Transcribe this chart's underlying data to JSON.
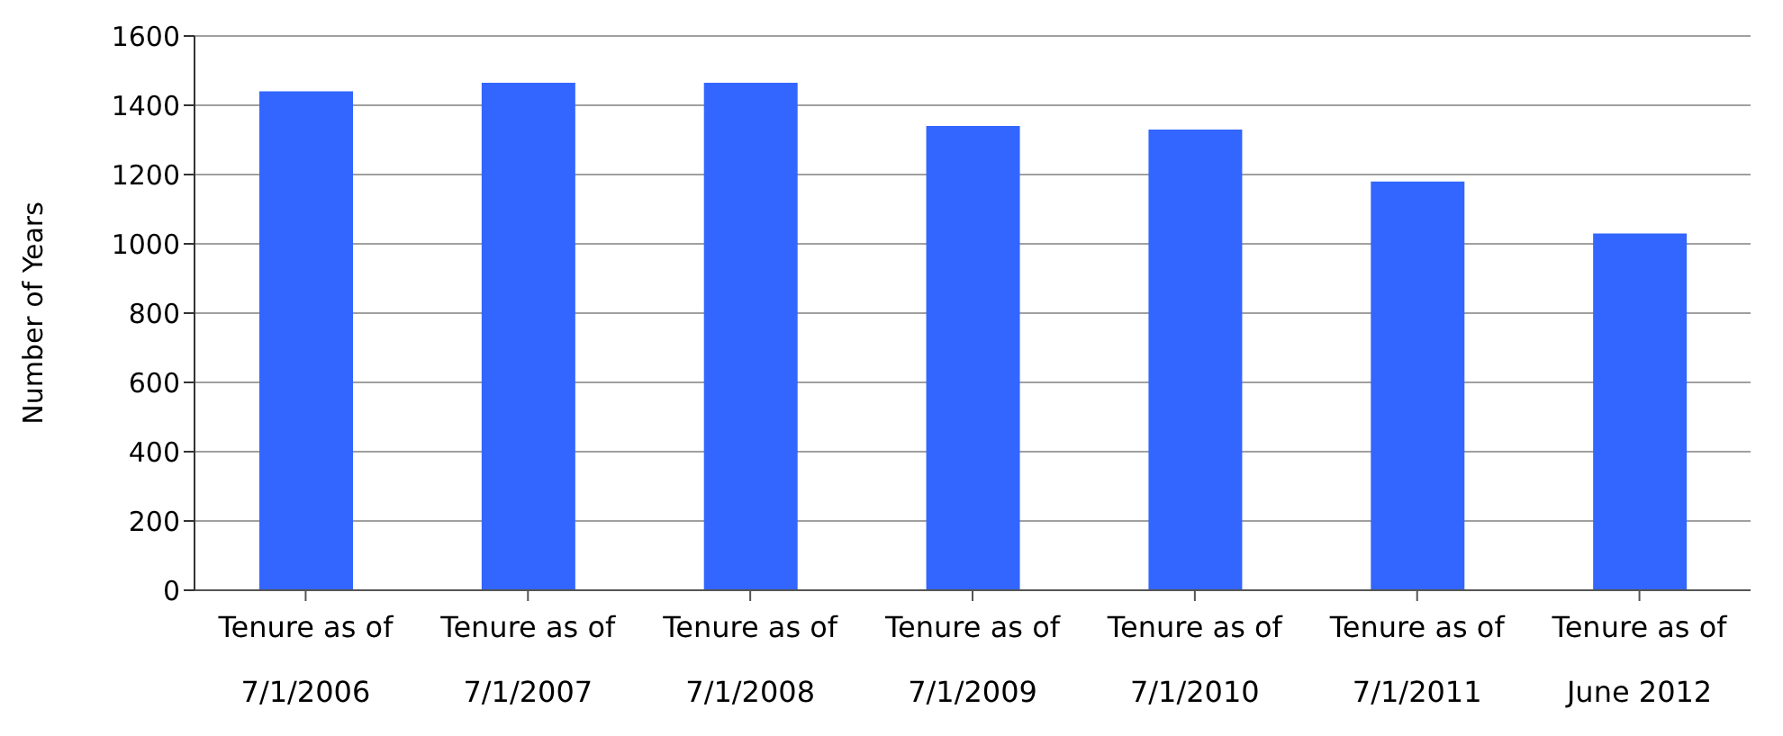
{
  "chart_data": {
    "type": "bar",
    "ylabel": "Number of Years",
    "categories": [
      "Tenure as of\n7/1/2006",
      "Tenure as of\n7/1/2007",
      "Tenure as of\n7/1/2008",
      "Tenure as of\n7/1/2009",
      "Tenure as of\n7/1/2010",
      "Tenure as of\n7/1/2011",
      "Tenure as of\nJune 2012"
    ],
    "values": [
      1440,
      1465,
      1465,
      1340,
      1330,
      1180,
      1030
    ],
    "color": "#3366ff",
    "ylim": [
      0,
      1600
    ],
    "yticks": [
      0,
      200,
      400,
      600,
      800,
      1000,
      1200,
      1400,
      1600
    ],
    "grid": "y",
    "legend": false
  }
}
